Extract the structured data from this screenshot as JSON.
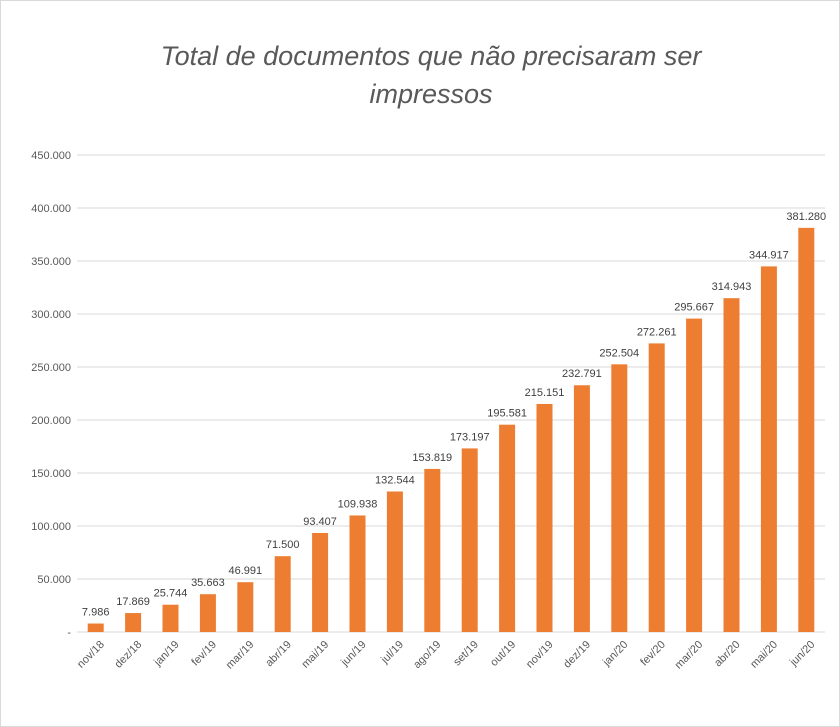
{
  "chart_data": {
    "type": "bar",
    "title": "Total de documentos que não precisaram ser impressos",
    "xlabel": "",
    "ylabel": "",
    "categories": [
      "nov/18",
      "dez/18",
      "jan/19",
      "fev/19",
      "mar/19",
      "abr/19",
      "mai/19",
      "jun/19",
      "jul/19",
      "ago/19",
      "set/19",
      "out/19",
      "nov/19",
      "dez/19",
      "jan/20",
      "fev/20",
      "mar/20",
      "abr/20",
      "mai/20",
      "jun/20"
    ],
    "values": [
      7986,
      17869,
      25744,
      35663,
      46991,
      71500,
      93407,
      109938,
      132544,
      153819,
      173197,
      195581,
      215151,
      232791,
      252504,
      272261,
      295667,
      314943,
      344917,
      381280
    ],
    "data_labels": [
      "7.986",
      "17.869",
      "25.744",
      "35.663",
      "46.991",
      "71.500",
      "93.407",
      "109.938",
      "132.544",
      "153.819",
      "173.197",
      "195.581",
      "215.151",
      "232.791",
      "252.504",
      "272.261",
      "295.667",
      "314.943",
      "344.917",
      "381.280"
    ],
    "y_ticks": [
      0,
      50000,
      100000,
      150000,
      200000,
      250000,
      300000,
      350000,
      400000,
      450000
    ],
    "y_tick_labels": [
      "-",
      "50.000",
      "100.000",
      "150.000",
      "200.000",
      "250.000",
      "300.000",
      "350.000",
      "400.000",
      "450.000"
    ],
    "ylim": [
      0,
      450000
    ],
    "grid": true,
    "legend": "none",
    "bar_color": "#ed7d31",
    "grid_color": "#d9d9d9",
    "text_color": "#595959"
  }
}
